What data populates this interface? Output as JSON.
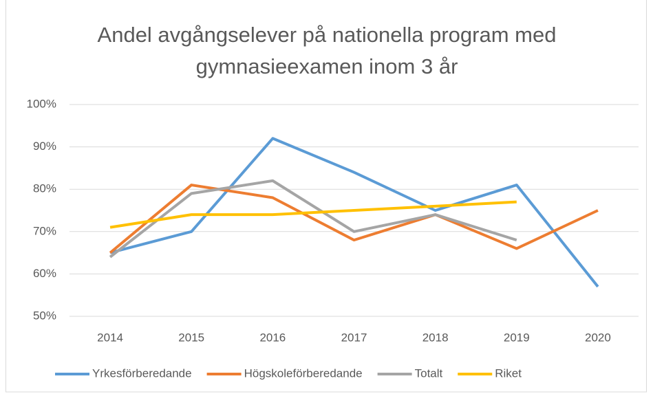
{
  "chart_data": {
    "type": "line",
    "title": "Andel avgångselever på nationella program med gymnasieexamen inom 3 år",
    "categories": [
      "2014",
      "2015",
      "2016",
      "2017",
      "2018",
      "2019",
      "2020"
    ],
    "series": [
      {
        "name": "Yrkesförberedande",
        "color": "#5b9bd5",
        "values": [
          65,
          70,
          92,
          84,
          75,
          81,
          57
        ]
      },
      {
        "name": "Högskoleförberedande",
        "color": "#ed7d31",
        "values": [
          65,
          81,
          78,
          68,
          74,
          66,
          75
        ]
      },
      {
        "name": "Totalt",
        "color": "#a5a5a5",
        "values": [
          64,
          79,
          82,
          70,
          74,
          68,
          null
        ]
      },
      {
        "name": "Riket",
        "color": "#ffc000",
        "values": [
          71,
          74,
          74,
          75,
          76,
          77,
          null
        ]
      }
    ],
    "ylim": [
      50,
      100
    ],
    "yticks": [
      {
        "value": 50,
        "label": "50%"
      },
      {
        "value": 60,
        "label": "60%"
      },
      {
        "value": 70,
        "label": "70%"
      },
      {
        "value": 80,
        "label": "80%"
      },
      {
        "value": 90,
        "label": "90%"
      },
      {
        "value": 100,
        "label": "100%"
      }
    ],
    "grid": true,
    "legend": "bottom"
  }
}
